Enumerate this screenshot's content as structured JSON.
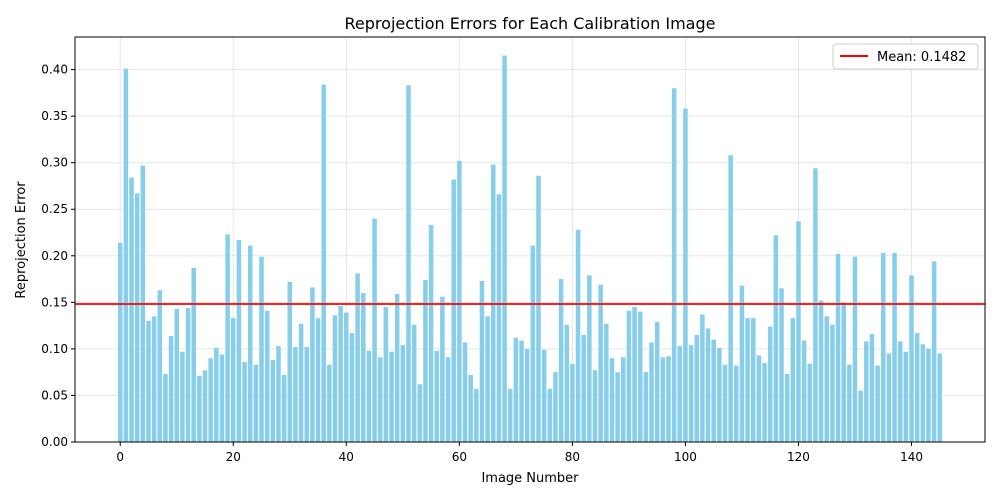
{
  "chart_data": {
    "type": "bar",
    "title": "Reprojection Errors for Each Calibration Image",
    "xlabel": "Image Number",
    "ylabel": "Reprojection Error",
    "xlim": [
      -8,
      153
    ],
    "ylim": [
      0,
      0.435
    ],
    "xticks": [
      0,
      20,
      40,
      60,
      80,
      100,
      120,
      140
    ],
    "yticks": [
      0.0,
      0.05,
      0.1,
      0.15,
      0.2,
      0.25,
      0.3,
      0.35,
      0.4
    ],
    "grid": true,
    "legend_position": "top-right",
    "bar_color": "#87ceeb",
    "mean_color": "#ff0000",
    "mean": {
      "value": 0.1482,
      "label": "Mean: 0.1482"
    },
    "x": [
      0,
      1,
      2,
      3,
      4,
      5,
      6,
      7,
      8,
      9,
      10,
      11,
      12,
      13,
      14,
      15,
      16,
      17,
      18,
      19,
      20,
      21,
      22,
      23,
      24,
      25,
      26,
      27,
      28,
      29,
      30,
      31,
      32,
      33,
      34,
      35,
      36,
      37,
      38,
      39,
      40,
      41,
      42,
      43,
      44,
      45,
      46,
      47,
      48,
      49,
      50,
      51,
      52,
      53,
      54,
      55,
      56,
      57,
      58,
      59,
      60,
      61,
      62,
      63,
      64,
      65,
      66,
      67,
      68,
      69,
      70,
      71,
      72,
      73,
      74,
      75,
      76,
      77,
      78,
      79,
      80,
      81,
      82,
      83,
      84,
      85,
      86,
      87,
      88,
      89,
      90,
      91,
      92,
      93,
      94,
      95,
      96,
      97,
      98,
      99,
      100,
      101,
      102,
      103,
      104,
      105,
      106,
      107,
      108,
      109,
      110,
      111,
      112,
      113,
      114,
      115,
      116,
      117,
      118,
      119,
      120,
      121,
      122,
      123,
      124,
      125,
      126,
      127,
      128,
      129,
      130,
      131,
      132,
      133,
      134,
      135,
      136,
      137,
      138,
      139,
      140,
      141,
      142,
      143,
      144,
      145
    ],
    "values": [
      0.214,
      0.401,
      0.284,
      0.267,
      0.297,
      0.13,
      0.135,
      0.163,
      0.073,
      0.114,
      0.143,
      0.097,
      0.144,
      0.187,
      0.071,
      0.077,
      0.09,
      0.101,
      0.094,
      0.223,
      0.133,
      0.217,
      0.086,
      0.211,
      0.083,
      0.199,
      0.141,
      0.088,
      0.103,
      0.072,
      0.172,
      0.102,
      0.127,
      0.102,
      0.166,
      0.133,
      0.384,
      0.083,
      0.136,
      0.146,
      0.139,
      0.117,
      0.181,
      0.16,
      0.098,
      0.24,
      0.091,
      0.145,
      0.097,
      0.159,
      0.104,
      0.383,
      0.126,
      0.062,
      0.174,
      0.233,
      0.098,
      0.156,
      0.091,
      0.282,
      0.302,
      0.107,
      0.072,
      0.057,
      0.173,
      0.135,
      0.298,
      0.266,
      0.415,
      0.057,
      0.112,
      0.109,
      0.1,
      0.211,
      0.286,
      0.099,
      0.057,
      0.075,
      0.175,
      0.126,
      0.084,
      0.228,
      0.115,
      0.179,
      0.077,
      0.169,
      0.127,
      0.09,
      0.075,
      0.091,
      0.141,
      0.145,
      0.14,
      0.075,
      0.107,
      0.129,
      0.091,
      0.092,
      0.38,
      0.103,
      0.358,
      0.104,
      0.115,
      0.137,
      0.122,
      0.11,
      0.101,
      0.083,
      0.308,
      0.082,
      0.168,
      0.133,
      0.133,
      0.093,
      0.085,
      0.124,
      0.222,
      0.165,
      0.073,
      0.133,
      0.237,
      0.109,
      0.084,
      0.294,
      0.152,
      0.135,
      0.126,
      0.202,
      0.15,
      0.083,
      0.199,
      0.055,
      0.108,
      0.116,
      0.082,
      0.203,
      0.095,
      0.203,
      0.108,
      0.097,
      0.179,
      0.117,
      0.105,
      0.1,
      0.194,
      0.095
    ]
  }
}
